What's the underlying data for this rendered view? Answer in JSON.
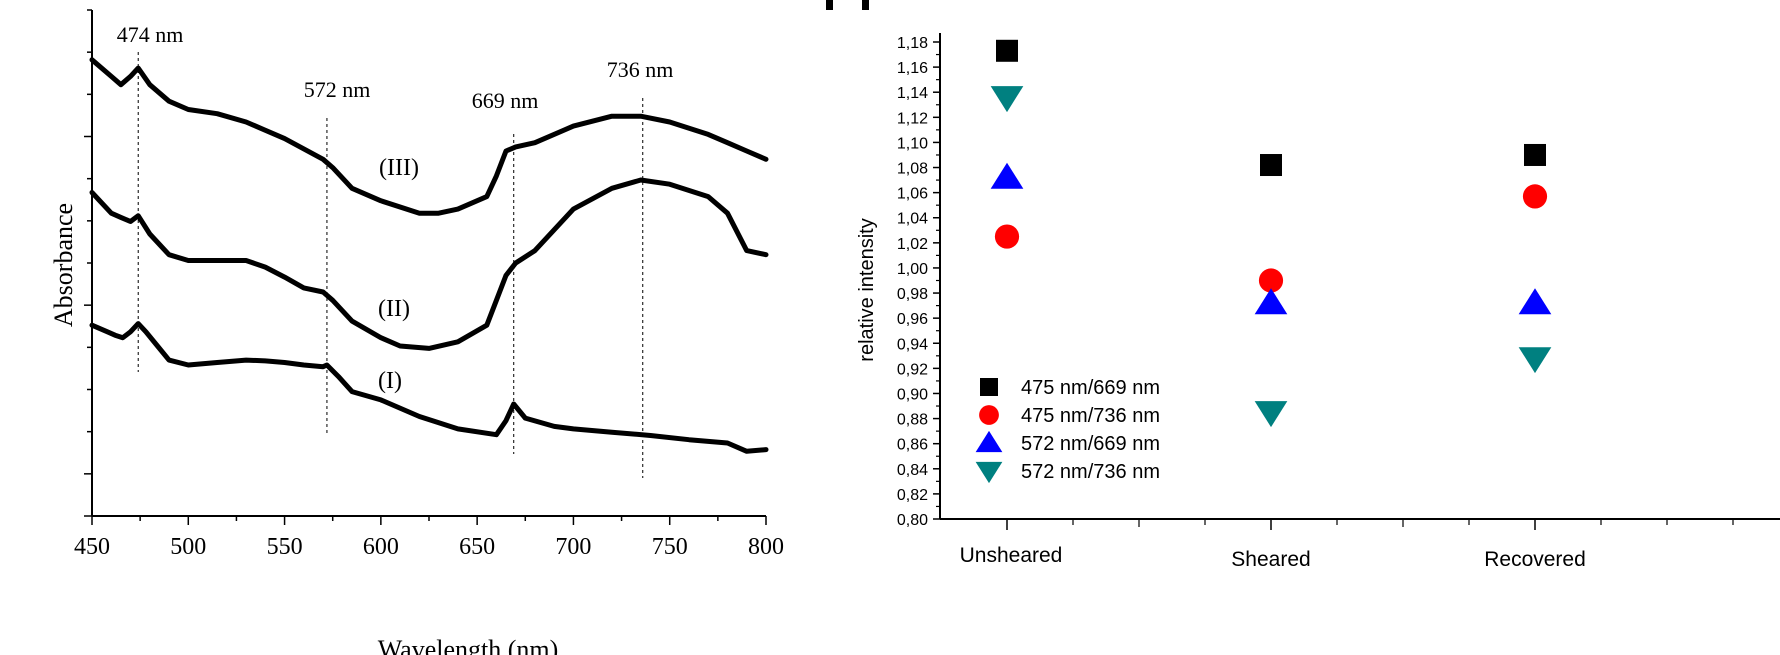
{
  "charts": {
    "left": {
      "type": "line",
      "xlabel": "Wavelength (nm)",
      "ylabel": "Absorbance",
      "xlim": [
        450,
        800
      ],
      "x_ticks": [
        450,
        500,
        550,
        600,
        650,
        700,
        750,
        800
      ],
      "peak_labels": [
        "474 nm",
        "572 nm",
        "669 nm",
        "736 nm"
      ],
      "peak_wavelengths": [
        474,
        572,
        669,
        736
      ],
      "series_labels": [
        "(I)",
        "(II)",
        "(III)"
      ],
      "series": [
        {
          "label": "(I)",
          "x": [
            450,
            458,
            462,
            466,
            470,
            474,
            478,
            484,
            490,
            500,
            515,
            530,
            540,
            550,
            560,
            570,
            572,
            578,
            585,
            600,
            620,
            640,
            660,
            665,
            669,
            675,
            690,
            700,
            720,
            740,
            760,
            780,
            790,
            800
          ],
          "y": [
            1.2,
            1.12,
            1.08,
            1.05,
            1.12,
            1.22,
            1.12,
            0.95,
            0.78,
            0.72,
            0.75,
            0.78,
            0.77,
            0.75,
            0.72,
            0.7,
            0.72,
            0.58,
            0.4,
            0.3,
            0.1,
            -0.05,
            -0.12,
            0.05,
            0.25,
            0.08,
            -0.02,
            -0.05,
            -0.09,
            -0.13,
            -0.18,
            -0.22,
            -0.32,
            -0.3
          ]
        },
        {
          "label": "(II)",
          "x": [
            450,
            460,
            465,
            470,
            474,
            480,
            490,
            500,
            515,
            530,
            540,
            550,
            560,
            570,
            575,
            585,
            600,
            610,
            625,
            640,
            655,
            660,
            665,
            670,
            680,
            700,
            720,
            735,
            750,
            770,
            780,
            790,
            800
          ],
          "y": [
            2.8,
            2.55,
            2.5,
            2.45,
            2.52,
            2.3,
            2.05,
            1.98,
            1.98,
            1.98,
            1.9,
            1.78,
            1.65,
            1.6,
            1.5,
            1.25,
            1.05,
            0.95,
            0.92,
            1.0,
            1.2,
            1.5,
            1.8,
            1.95,
            2.1,
            2.6,
            2.85,
            2.95,
            2.9,
            2.75,
            2.55,
            2.1,
            2.05
          ]
        },
        {
          "label": "(III)",
          "x": [
            450,
            460,
            465,
            470,
            474,
            480,
            490,
            500,
            515,
            530,
            550,
            570,
            575,
            585,
            600,
            620,
            630,
            640,
            655,
            660,
            665,
            670,
            680,
            700,
            720,
            735,
            750,
            770,
            780,
            790,
            800
          ],
          "y": [
            4.4,
            4.2,
            4.1,
            4.2,
            4.3,
            4.1,
            3.9,
            3.8,
            3.75,
            3.65,
            3.45,
            3.2,
            3.1,
            2.85,
            2.7,
            2.55,
            2.55,
            2.6,
            2.75,
            3.0,
            3.3,
            3.35,
            3.4,
            3.6,
            3.72,
            3.72,
            3.65,
            3.5,
            3.4,
            3.3,
            3.2
          ]
        }
      ]
    },
    "right": {
      "type": "scatter",
      "ylabel": "relative intensity",
      "ylim": [
        0.8,
        1.18
      ],
      "y_ticks": [
        "0,80",
        "0,82",
        "0,84",
        "0,86",
        "0,88",
        "0,90",
        "0,92",
        "0,94",
        "0,96",
        "0,98",
        "1,00",
        "1,02",
        "1,04",
        "1,06",
        "1,08",
        "1,10",
        "1,12",
        "1,14",
        "1,16",
        "1,18"
      ],
      "categories": [
        "Unsheared",
        "Sheared",
        "Recovered"
      ],
      "series": [
        {
          "name": "475 nm/669 nm",
          "marker": "square",
          "color": "#000000",
          "values": [
            1.173,
            1.082,
            1.09
          ]
        },
        {
          "name": "475 nm/736 nm",
          "marker": "circle",
          "color": "#ff0000",
          "values": [
            1.025,
            0.99,
            1.057
          ]
        },
        {
          "name": "572 nm/669 nm",
          "marker": "triangle-up",
          "color": "#0000ff",
          "values": [
            1.072,
            0.972,
            0.972
          ]
        },
        {
          "name": "572 nm/736 nm",
          "marker": "triangle-down",
          "color": "#008080",
          "values": [
            1.136,
            0.885,
            0.928
          ]
        }
      ]
    }
  }
}
